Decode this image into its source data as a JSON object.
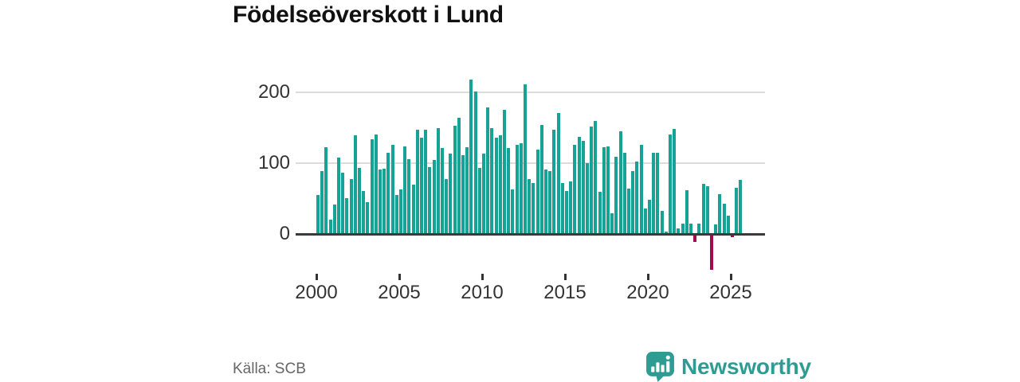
{
  "header": {
    "title": "Födelseöverskott i Lund"
  },
  "footer": {
    "source": "Källa: SCB",
    "brand": "Newsworthy"
  },
  "colors": {
    "bar_positive": "#16a294",
    "bar_negative": "#a30b4a",
    "gridline": "#dcdcdc",
    "zero_axis": "#3a3a3a",
    "axis_text": "#333333",
    "source_text": "#666666",
    "brand_teal": "#2f9c93",
    "title_text": "#111111"
  },
  "chart_data": {
    "type": "bar",
    "title": "Födelseöverskott i Lund",
    "xlabel": "",
    "ylabel": "",
    "frequency": "quarterly",
    "start": {
      "year": 2000,
      "quarter": 1
    },
    "values": [
      55,
      89,
      123,
      20,
      42,
      108,
      87,
      51,
      78,
      139,
      93,
      61,
      45,
      134,
      141,
      91,
      92,
      115,
      126,
      55,
      63,
      124,
      106,
      70,
      147,
      136,
      147,
      94,
      104,
      149,
      121,
      78,
      113,
      153,
      164,
      111,
      122,
      218,
      201,
      93,
      113,
      179,
      149,
      136,
      139,
      175,
      121,
      63,
      126,
      128,
      211,
      78,
      72,
      119,
      154,
      91,
      89,
      147,
      171,
      72,
      61,
      74,
      126,
      137,
      132,
      100,
      152,
      160,
      60,
      122,
      124,
      29,
      109,
      145,
      115,
      64,
      89,
      102,
      126,
      36,
      48,
      115,
      115,
      33,
      3,
      140,
      148,
      8,
      15,
      62,
      15,
      -9,
      15,
      71,
      67,
      -49,
      13,
      56,
      43,
      26,
      -3,
      65,
      77
    ],
    "yticks": [
      0,
      100,
      200
    ],
    "xtick_years": [
      2000,
      2005,
      2010,
      2015,
      2020,
      2025
    ],
    "ylim": [
      -60,
      230
    ],
    "grid": "horizontal",
    "legend": "none"
  }
}
